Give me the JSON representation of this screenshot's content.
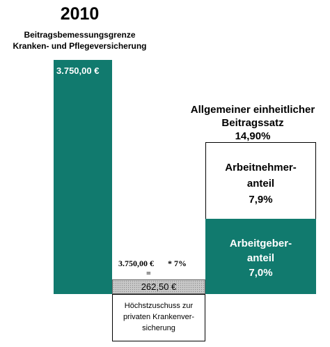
{
  "heading": {
    "year": "2010",
    "subtitle_line1": "Beitragsbemessungsgrenze",
    "subtitle_line2": "Kranken- und Pflegeversicherung"
  },
  "bbg_bar": {
    "value": "3.750,00 €",
    "color": "#117a6e"
  },
  "rate": {
    "title_line1": "Allgemeiner einheitlicher",
    "title_line2": "Beitragssatz",
    "total": "14,90%",
    "arbeitnehmer": {
      "label_line1": "Arbeitnehmer-",
      "label_line2": "anteil",
      "value": "7,9%"
    },
    "arbeitgeber": {
      "label_line1": "Arbeitgeber-",
      "label_line2": "anteil",
      "value": "7,0%",
      "color": "#117a6e"
    }
  },
  "calculation": {
    "base": "3.750,00 €",
    "factor": "* 7%",
    "equals": "=",
    "result": "262,50 €",
    "description_line1": "Höchstzuschuss zur",
    "description_line2": "privaten Krankenver-",
    "description_line3": "sicherung"
  }
}
